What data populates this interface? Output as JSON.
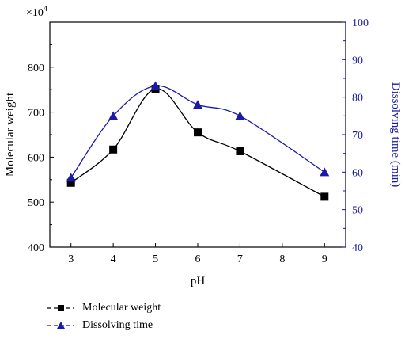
{
  "chart_data": {
    "type": "line",
    "x": [
      3,
      4,
      5,
      6,
      7,
      9
    ],
    "xlabel": "pH",
    "xlim": [
      2.5,
      9.5
    ],
    "xticks": [
      "3",
      "4",
      "5",
      "6",
      "7",
      "8",
      "9"
    ],
    "ylabel": "Molecular weight",
    "ylim": [
      400,
      900
    ],
    "yticks": [
      "400",
      "500",
      "600",
      "700",
      "800"
    ],
    "y_multiplier": "×10",
    "y_multiplier_exp": "4",
    "y2label": "Dissolving time (min)",
    "y2lim": [
      40,
      100
    ],
    "y2ticks": [
      "40",
      "50",
      "60",
      "70",
      "80",
      "90",
      "100"
    ],
    "grid": false,
    "legend_position": "bottom-left",
    "series": [
      {
        "name": "Molecular weight",
        "axis": "left",
        "marker": "square",
        "color": "#000000",
        "values": [
          543,
          617,
          752,
          655,
          613,
          512
        ]
      },
      {
        "name": "Dissolving time",
        "axis": "right",
        "marker": "triangle",
        "color": "#1a1aa6",
        "values": [
          58.5,
          75,
          83,
          78,
          75,
          60
        ]
      }
    ]
  }
}
